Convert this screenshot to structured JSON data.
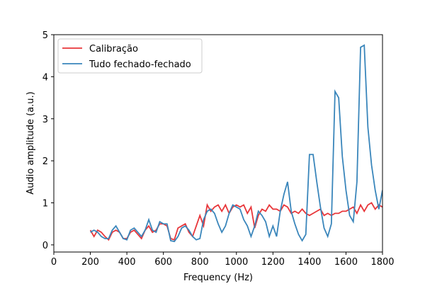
{
  "chart_data": {
    "type": "line",
    "x": [
      200,
      220,
      240,
      260,
      280,
      300,
      320,
      340,
      360,
      380,
      400,
      420,
      440,
      460,
      480,
      500,
      520,
      540,
      560,
      580,
      600,
      620,
      640,
      660,
      680,
      700,
      720,
      740,
      760,
      780,
      800,
      820,
      840,
      860,
      880,
      900,
      920,
      940,
      960,
      980,
      1000,
      1020,
      1040,
      1060,
      1080,
      1100,
      1120,
      1140,
      1160,
      1180,
      1200,
      1220,
      1240,
      1260,
      1280,
      1300,
      1320,
      1340,
      1360,
      1380,
      1400,
      1420,
      1440,
      1460,
      1480,
      1500,
      1520,
      1540,
      1560,
      1580,
      1600,
      1620,
      1640,
      1660,
      1680,
      1700,
      1720,
      1740,
      1760,
      1780,
      1800
    ],
    "series": [
      {
        "name": "Calibração",
        "color": "#e8363a",
        "values": [
          0.35,
          0.2,
          0.35,
          0.3,
          0.2,
          0.12,
          0.3,
          0.35,
          0.3,
          0.15,
          0.15,
          0.3,
          0.35,
          0.25,
          0.15,
          0.35,
          0.45,
          0.3,
          0.35,
          0.5,
          0.5,
          0.45,
          0.15,
          0.12,
          0.4,
          0.45,
          0.5,
          0.3,
          0.2,
          0.45,
          0.7,
          0.45,
          0.95,
          0.8,
          0.9,
          0.95,
          0.8,
          0.95,
          0.75,
          0.9,
          0.95,
          0.9,
          0.95,
          0.75,
          0.9,
          0.4,
          0.7,
          0.85,
          0.8,
          0.95,
          0.85,
          0.85,
          0.8,
          0.95,
          0.9,
          0.75,
          0.8,
          0.75,
          0.85,
          0.75,
          0.7,
          0.75,
          0.8,
          0.85,
          0.7,
          0.75,
          0.7,
          0.75,
          0.75,
          0.8,
          0.8,
          0.85,
          0.9,
          0.75,
          0.95,
          0.8,
          0.95,
          1.0,
          0.85,
          0.95,
          0.9
        ]
      },
      {
        "name": "Tudo fechado-fechado",
        "color": "#3a86bb",
        "values": [
          0.3,
          0.35,
          0.3,
          0.2,
          0.15,
          0.15,
          0.35,
          0.45,
          0.3,
          0.15,
          0.12,
          0.35,
          0.4,
          0.3,
          0.2,
          0.35,
          0.6,
          0.35,
          0.3,
          0.55,
          0.5,
          0.5,
          0.1,
          0.08,
          0.2,
          0.4,
          0.45,
          0.35,
          0.2,
          0.12,
          0.15,
          0.6,
          0.8,
          0.85,
          0.75,
          0.5,
          0.3,
          0.45,
          0.75,
          0.95,
          0.9,
          0.85,
          0.6,
          0.45,
          0.2,
          0.45,
          0.8,
          0.7,
          0.55,
          0.2,
          0.45,
          0.2,
          0.8,
          1.2,
          1.5,
          0.8,
          0.5,
          0.25,
          0.1,
          0.25,
          2.15,
          2.15,
          1.5,
          0.9,
          0.4,
          0.2,
          0.5,
          3.65,
          3.5,
          2.1,
          1.3,
          0.7,
          0.55,
          1.5,
          4.7,
          4.75,
          2.8,
          1.9,
          1.3,
          0.85,
          1.3
        ]
      }
    ],
    "xlabel": "Frequency (Hz)",
    "ylabel": "Audio amplitude (a.u.)",
    "xlim": [
      0,
      1800
    ],
    "ylim": [
      -0.17,
      5
    ],
    "xticks": [
      0,
      200,
      400,
      600,
      800,
      1000,
      1200,
      1400,
      1600,
      1800
    ],
    "yticks": [
      0,
      1,
      2,
      3,
      4,
      5
    ],
    "legend": "upper left"
  }
}
